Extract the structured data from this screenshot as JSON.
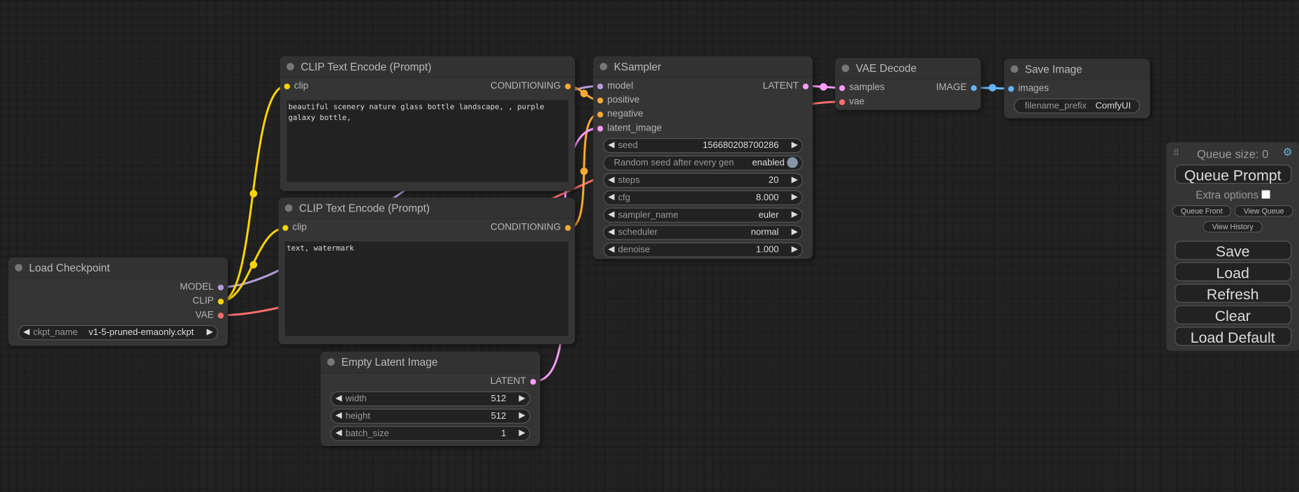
{
  "colors": {
    "clip": "#ffd500",
    "conditioning": "#ffa931",
    "model": "#b39ddb",
    "latent": "#ff9cf9",
    "vae": "#ff6e6e",
    "image": "#64b5f6"
  },
  "load_checkpoint": {
    "title": "Load Checkpoint",
    "outputs": [
      "MODEL",
      "CLIP",
      "VAE"
    ],
    "ckpt_label": "ckpt_name",
    "ckpt_value": "v1-5-pruned-emaonly.ckpt"
  },
  "clip_pos": {
    "title": "CLIP Text Encode (Prompt)",
    "input": "clip",
    "output": "CONDITIONING",
    "text": "beautiful scenery nature glass bottle landscape, , purple galaxy bottle,"
  },
  "clip_neg": {
    "title": "CLIP Text Encode (Prompt)",
    "input": "clip",
    "output": "CONDITIONING",
    "text": "text, watermark"
  },
  "empty_latent": {
    "title": "Empty Latent Image",
    "output": "LATENT",
    "widgets": [
      {
        "name": "width",
        "value": "512"
      },
      {
        "name": "height",
        "value": "512"
      },
      {
        "name": "batch_size",
        "value": "1"
      }
    ]
  },
  "ksampler": {
    "title": "KSampler",
    "inputs": [
      "model",
      "positive",
      "negative",
      "latent_image"
    ],
    "output": "LATENT",
    "seed": {
      "name": "seed",
      "value": "156680208700286"
    },
    "random_seed": {
      "name": "Random seed after every gen",
      "value": "enabled"
    },
    "widgets": [
      {
        "name": "steps",
        "value": "20"
      },
      {
        "name": "cfg",
        "value": "8.000"
      },
      {
        "name": "sampler_name",
        "value": "euler"
      },
      {
        "name": "scheduler",
        "value": "normal"
      },
      {
        "name": "denoise",
        "value": "1.000"
      }
    ]
  },
  "vae_decode": {
    "title": "VAE Decode",
    "inputs": [
      "samples",
      "vae"
    ],
    "output": "IMAGE"
  },
  "save_image": {
    "title": "Save Image",
    "input": "images",
    "prefix_label": "filename_prefix",
    "prefix_value": "ComfyUI"
  },
  "panel": {
    "queue_size": "Queue size: 0",
    "queue_prompt": "Queue Prompt",
    "extra_options": "Extra options",
    "extra_checked": false,
    "queue_front": "Queue Front",
    "view_queue": "View Queue",
    "view_history": "View History",
    "save": "Save",
    "load": "Load",
    "refresh": "Refresh",
    "clear": "Clear",
    "load_default": "Load Default"
  }
}
